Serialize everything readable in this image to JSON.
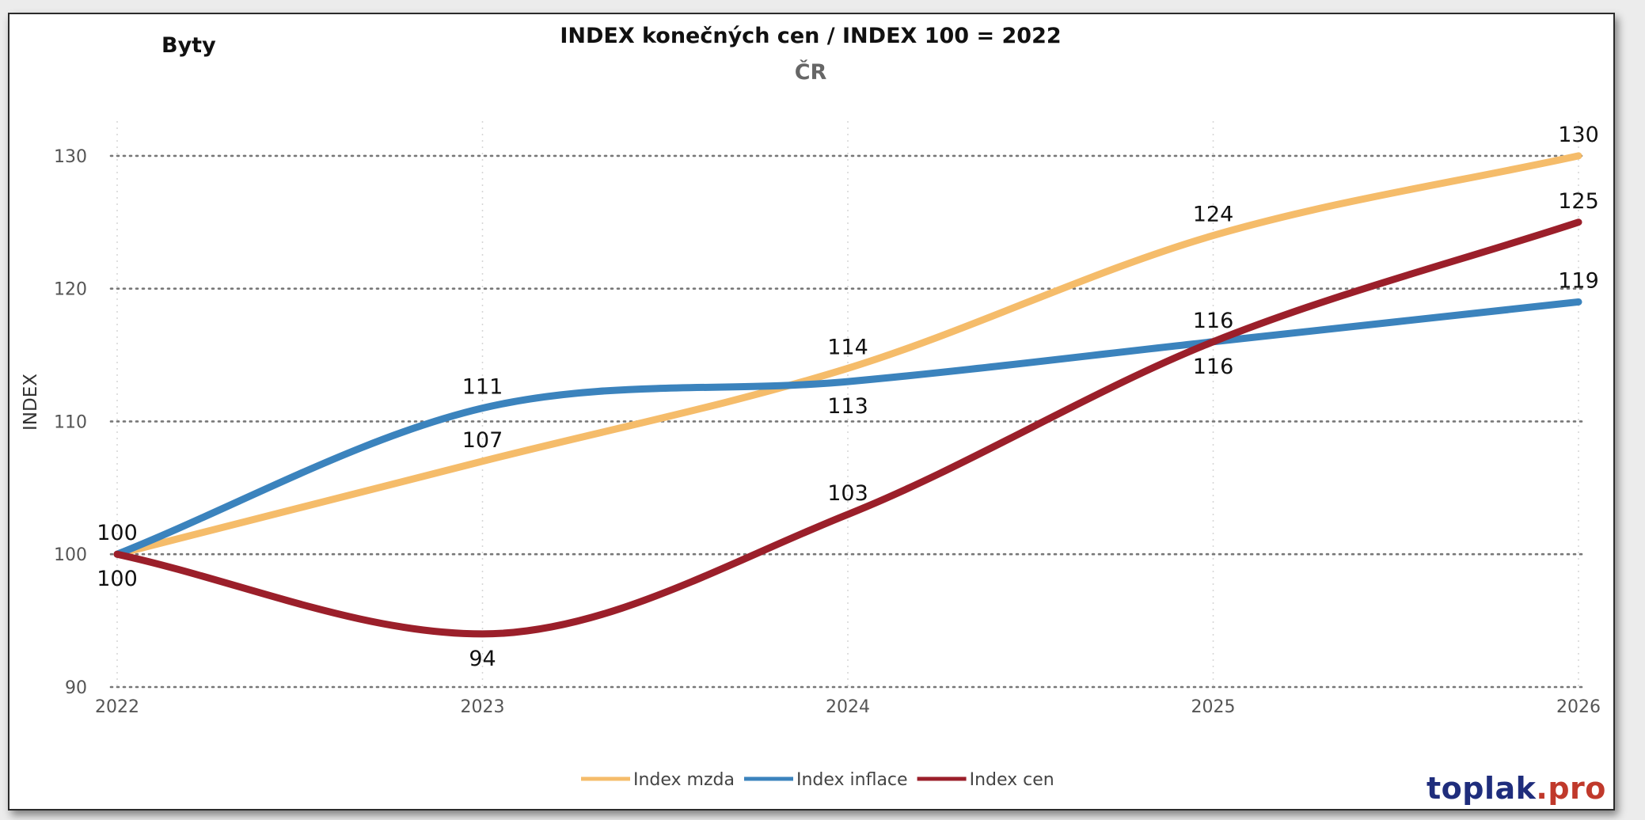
{
  "chart_data": {
    "type": "line",
    "label_left": "Byty",
    "title": "INDEX konečných cen / INDEX 100 = 2022",
    "subtitle": "ČR",
    "ylabel": "INDEX",
    "xlabel": "",
    "x": [
      "2022",
      "2023",
      "2024",
      "2025",
      "2026"
    ],
    "ylim": [
      90,
      135
    ],
    "yticks": [
      90,
      100,
      110,
      120,
      130
    ],
    "grid": true,
    "legend_position": "bottom-center",
    "series": [
      {
        "name": "Index mzda",
        "color": "#f5bc6a",
        "values": [
          100,
          107,
          114,
          124,
          130
        ],
        "labels": [
          "",
          "107",
          "114",
          "124",
          "130"
        ],
        "label_pos": [
          "",
          "above",
          "above",
          "above",
          "above"
        ]
      },
      {
        "name": "Index inflace",
        "color": "#3b83bd",
        "values": [
          100,
          111,
          113,
          116,
          119
        ],
        "labels": [
          "100",
          "111",
          "113",
          "116",
          "119"
        ],
        "label_pos": [
          "above",
          "above",
          "below",
          "below",
          "above"
        ]
      },
      {
        "name": "Index cen",
        "color": "#9b1f2a",
        "values": [
          100,
          94,
          103,
          116,
          125
        ],
        "labels": [
          "100",
          "94",
          "103",
          "116",
          "125"
        ],
        "label_pos": [
          "below",
          "below",
          "above",
          "above",
          "above"
        ]
      }
    ]
  },
  "brand": {
    "name": "toplak",
    "suffix": ".pro",
    "name_color": "#1f2d7c",
    "suffix_color": "#c0392b"
  }
}
